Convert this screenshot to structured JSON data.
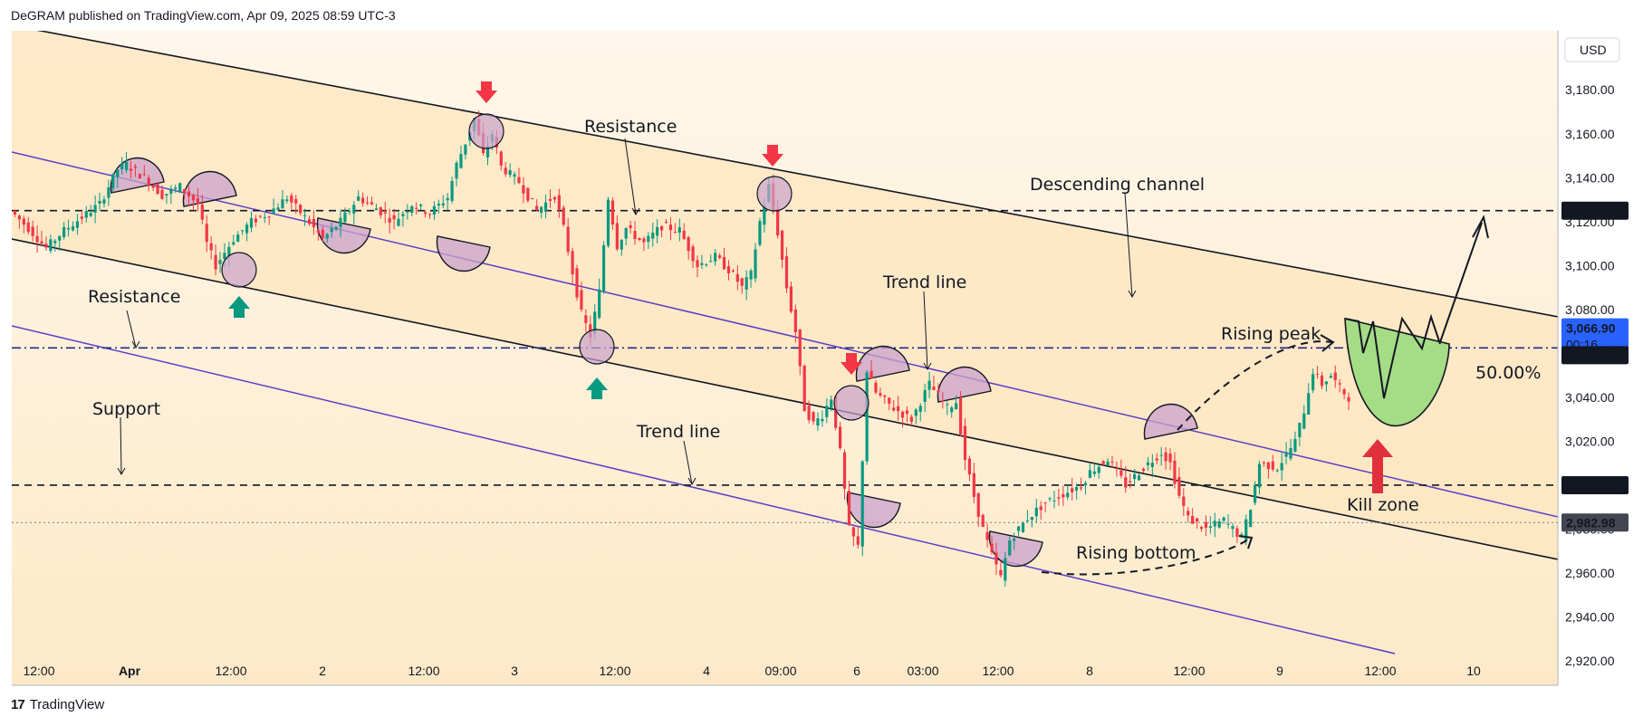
{
  "header": {
    "published": "DeGRAM published on TradingView.com, Apr 09, 2025 08:59 UTC-3"
  },
  "footer": {
    "brand": "TradingView",
    "logo_glyph": "17"
  },
  "colors": {
    "bg_top": "#fff5e6",
    "bg_bottom": "#fde7c6",
    "channel_fill": "#fde6bf",
    "up": "#089981",
    "down": "#f23645",
    "trendline": "#5b3ec8",
    "channel": "#131722",
    "circle_fill": "#c9a2cd",
    "green_zone": "#a5dc86",
    "fib_label": "#2962ff",
    "badge_blue": "#2962ff",
    "badge_dark": "#131722",
    "badge_gray": "#434651",
    "arrow_green": "#089981",
    "arrow_red": "#e0303c"
  },
  "chart_data": {
    "type": "candlestick",
    "symbol_currency": "USD",
    "ylim": [
      2910,
      3200
    ],
    "y_ticks": [
      2920,
      2940,
      2960,
      2980,
      3000,
      3020,
      3040,
      3060,
      3080,
      3100,
      3120,
      3140,
      3160,
      3180
    ],
    "y_tick_labels": [
      "2,920.00",
      "2,940.00",
      "2,960.00",
      "2,980.00",
      "3,000.00",
      "3,020.00",
      "3,040.00",
      "3,060.00",
      "3,080.00",
      "3,100.00",
      "3,120.00",
      "3,140.00",
      "3,160.00",
      "3,180.00"
    ],
    "x_ticks": [
      "12:00",
      "Apr",
      "12:00",
      "2",
      "12:00",
      "3",
      "12:00",
      "4",
      "09:00",
      "6",
      "03:00",
      "12:00",
      "8",
      "12:00",
      "9",
      "12:00",
      "10"
    ],
    "price_path": [
      [
        0,
        3125
      ],
      [
        2,
        3117
      ],
      [
        4,
        3108
      ],
      [
        6,
        3116
      ],
      [
        8,
        3122
      ],
      [
        10,
        3128
      ],
      [
        12,
        3144
      ],
      [
        13,
        3146
      ],
      [
        15,
        3140
      ],
      [
        17,
        3132
      ],
      [
        19,
        3136
      ],
      [
        21,
        3128
      ],
      [
        22,
        3110
      ],
      [
        23,
        3100
      ],
      [
        25,
        3112
      ],
      [
        27,
        3120
      ],
      [
        29,
        3124
      ],
      [
        31,
        3131
      ],
      [
        33,
        3122
      ],
      [
        35,
        3112
      ],
      [
        37,
        3120
      ],
      [
        39,
        3131
      ],
      [
        41,
        3126
      ],
      [
        43,
        3120
      ],
      [
        45,
        3128
      ],
      [
        47,
        3124
      ],
      [
        49,
        3131
      ],
      [
        50,
        3146
      ],
      [
        51,
        3156
      ],
      [
        52,
        3167
      ],
      [
        53,
        3150
      ],
      [
        54,
        3160
      ],
      [
        55,
        3145
      ],
      [
        57,
        3138
      ],
      [
        59,
        3125
      ],
      [
        61,
        3132
      ],
      [
        62,
        3117
      ],
      [
        63,
        3097
      ],
      [
        64,
        3078
      ],
      [
        65,
        3068
      ],
      [
        66,
        3088
      ],
      [
        67,
        3131
      ],
      [
        68,
        3109
      ],
      [
        69,
        3117
      ],
      [
        71,
        3110
      ],
      [
        73,
        3118
      ],
      [
        75,
        3116
      ],
      [
        77,
        3100
      ],
      [
        79,
        3104
      ],
      [
        81,
        3096
      ],
      [
        82,
        3090
      ],
      [
        83,
        3096
      ],
      [
        84,
        3120
      ],
      [
        85,
        3136
      ],
      [
        86,
        3115
      ],
      [
        87,
        3090
      ],
      [
        88,
        3070
      ],
      [
        89,
        3035
      ],
      [
        90,
        3028
      ],
      [
        91,
        3032
      ],
      [
        92,
        3040
      ],
      [
        93,
        3015
      ],
      [
        94,
        2980
      ],
      [
        95,
        2972
      ],
      [
        96,
        3052
      ],
      [
        97,
        3042
      ],
      [
        99,
        3035
      ],
      [
        101,
        3030
      ],
      [
        103,
        3046
      ],
      [
        105,
        3035
      ],
      [
        106,
        3038
      ],
      [
        107,
        3012
      ],
      [
        108,
        2995
      ],
      [
        109,
        2980
      ],
      [
        110,
        2968
      ],
      [
        111,
        2958
      ],
      [
        112,
        2975
      ],
      [
        114,
        2985
      ],
      [
        116,
        2992
      ],
      [
        118,
        2996
      ],
      [
        120,
        3000
      ],
      [
        121,
        3006
      ],
      [
        123,
        3012
      ],
      [
        125,
        3000
      ],
      [
        127,
        3008
      ],
      [
        129,
        3015
      ],
      [
        130,
        3010
      ],
      [
        131,
        2995
      ],
      [
        132,
        2985
      ],
      [
        134,
        2980
      ],
      [
        136,
        2984
      ],
      [
        138,
        2976
      ],
      [
        139,
        2990
      ],
      [
        140,
        3010
      ],
      [
        142,
        3008
      ],
      [
        144,
        3020
      ],
      [
        145,
        3034
      ],
      [
        146,
        3052
      ],
      [
        147,
        3046
      ],
      [
        148,
        3050
      ],
      [
        149,
        3044
      ],
      [
        150,
        3040
      ]
    ],
    "horizontal_levels": [
      {
        "price": 3125.0,
        "label": "3,125.00",
        "style": "dashed"
      },
      {
        "price": 3062.5,
        "label": "3,062.50",
        "style": "dash-dot"
      },
      {
        "price": 3000.0,
        "label": "3,000.00",
        "style": "dashed"
      },
      {
        "price": 2982.98,
        "label": "2,982.98",
        "style": "dotted"
      }
    ],
    "current_price": {
      "price": 3066.9,
      "label": "3,066.90",
      "countdown": "00:16"
    },
    "fib_label": "50.00%",
    "annotations": [
      {
        "text": "Resistance"
      },
      {
        "text": "Resistance"
      },
      {
        "text": "Descending channel"
      },
      {
        "text": "Trend line"
      },
      {
        "text": "Trend line"
      },
      {
        "text": "Support"
      },
      {
        "text": "Rising peak"
      },
      {
        "text": "Rising bottom"
      },
      {
        "text": "Kill zone"
      }
    ]
  }
}
